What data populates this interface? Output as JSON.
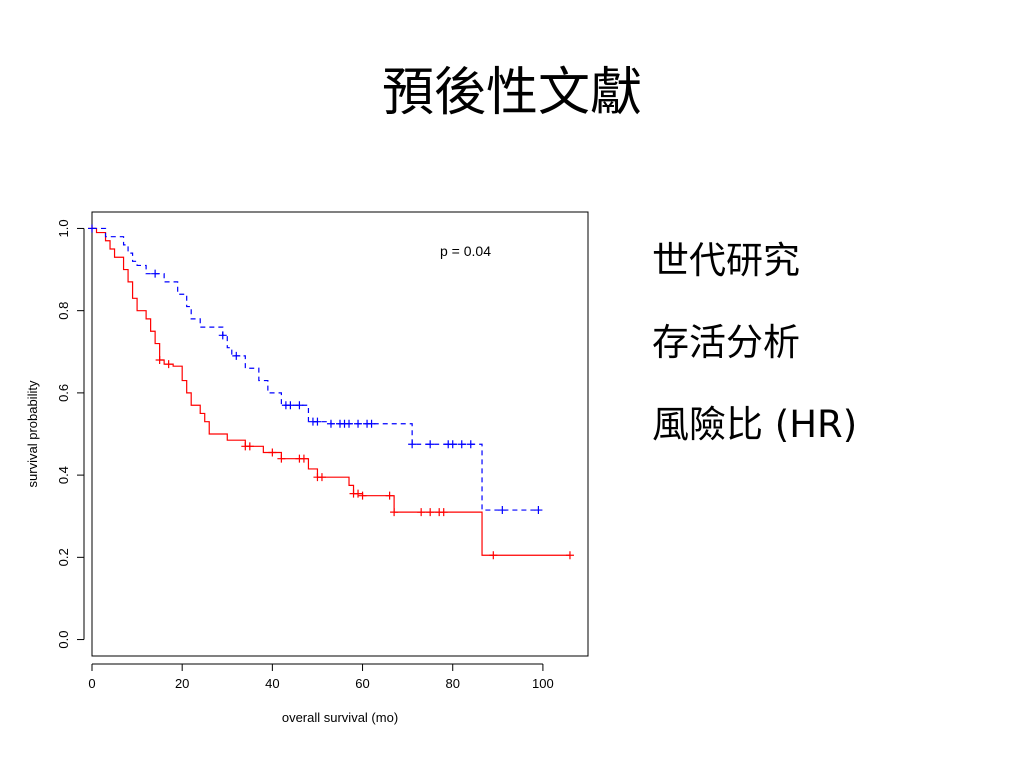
{
  "slide": {
    "title": "預後性文獻",
    "bullets": [
      "世代研究",
      "存活分析",
      "風險比 (HR)"
    ]
  },
  "chart_data": {
    "type": "line",
    "xlabel": "overall survival (mo)",
    "ylabel": "survival probability",
    "xlim": [
      0,
      110
    ],
    "ylim": [
      -0.04,
      1.04
    ],
    "xticks": [
      0,
      20,
      40,
      60,
      80,
      100
    ],
    "yticks": [
      0.0,
      0.2,
      0.4,
      0.6,
      0.8,
      1.0
    ],
    "grid": false,
    "annotation": "p = 0.04",
    "series": [
      {
        "color": "#ff0000",
        "line_style": "solid",
        "steps": [
          [
            0,
            1.0
          ],
          [
            1,
            0.99
          ],
          [
            3,
            0.97
          ],
          [
            4,
            0.95
          ],
          [
            5,
            0.93
          ],
          [
            7,
            0.9
          ],
          [
            8,
            0.87
          ],
          [
            9,
            0.83
          ],
          [
            10,
            0.8
          ],
          [
            12,
            0.78
          ],
          [
            13,
            0.75
          ],
          [
            14,
            0.72
          ],
          [
            15,
            0.68
          ],
          [
            16,
            0.67
          ],
          [
            18,
            0.665
          ],
          [
            20,
            0.63
          ],
          [
            21,
            0.6
          ],
          [
            22,
            0.57
          ],
          [
            24,
            0.55
          ],
          [
            25,
            0.53
          ],
          [
            26,
            0.5
          ],
          [
            30,
            0.485
          ],
          [
            34,
            0.47
          ],
          [
            38,
            0.455
          ],
          [
            42,
            0.44
          ],
          [
            48,
            0.415
          ],
          [
            50,
            0.395
          ],
          [
            57,
            0.375
          ],
          [
            58,
            0.355
          ],
          [
            60,
            0.35
          ],
          [
            67,
            0.31
          ],
          [
            86.5,
            0.205
          ],
          [
            106,
            0.205
          ]
        ],
        "censor_x": [
          0,
          15,
          17,
          34,
          35,
          40,
          42,
          46,
          47,
          50,
          51,
          58,
          59,
          60,
          66,
          67,
          73,
          75,
          77,
          78,
          89,
          106
        ]
      },
      {
        "color": "#0000ff",
        "line_style": "dashed",
        "steps": [
          [
            0,
            1.0
          ],
          [
            3,
            0.98
          ],
          [
            7,
            0.96
          ],
          [
            8,
            0.94
          ],
          [
            9,
            0.92
          ],
          [
            10,
            0.91
          ],
          [
            12,
            0.89
          ],
          [
            16,
            0.87
          ],
          [
            19,
            0.84
          ],
          [
            21,
            0.81
          ],
          [
            22,
            0.78
          ],
          [
            24,
            0.76
          ],
          [
            29,
            0.74
          ],
          [
            30,
            0.71
          ],
          [
            31,
            0.69
          ],
          [
            34,
            0.66
          ],
          [
            37,
            0.63
          ],
          [
            39,
            0.6
          ],
          [
            42,
            0.57
          ],
          [
            48,
            0.53
          ],
          [
            53,
            0.525
          ],
          [
            71,
            0.475
          ],
          [
            86.5,
            0.315
          ],
          [
            99,
            0.315
          ]
        ],
        "censor_x": [
          0,
          14,
          29,
          32,
          43,
          44,
          46,
          49,
          50,
          53,
          55,
          56,
          57,
          59,
          61,
          62,
          71,
          75,
          79,
          80,
          82,
          84,
          91,
          99
        ]
      }
    ]
  }
}
